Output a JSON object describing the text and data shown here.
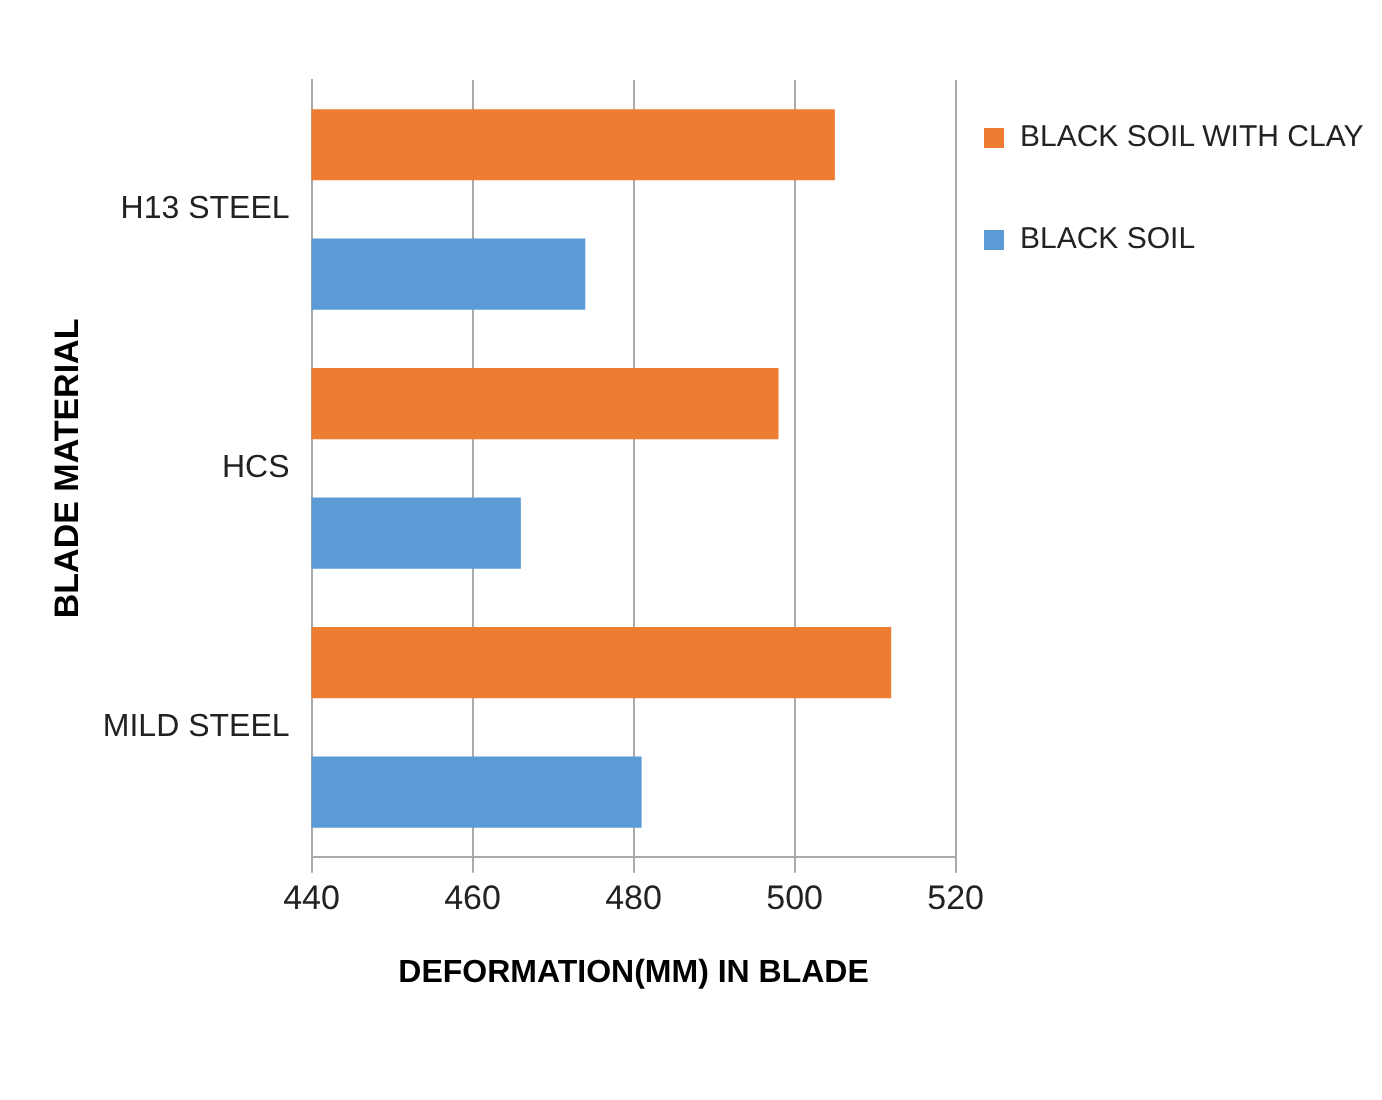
{
  "chart_data": {
    "type": "bar",
    "orientation": "horizontal",
    "xlabel": "DEFORMATION(MM) IN BLADE",
    "ylabel": "BLADE MATERIAL",
    "categories": [
      "H13 STEEL",
      "HCS",
      "MILD STEEL"
    ],
    "series": [
      {
        "name": "BLACK SOIL WITH CLAY",
        "color": "#ed7d31",
        "values": [
          505,
          498,
          512
        ]
      },
      {
        "name": "BLACK SOIL",
        "color": "#5b9bd5",
        "values": [
          474,
          466,
          481
        ]
      }
    ],
    "xlim": [
      440,
      520
    ],
    "xticks": [
      440,
      460,
      480,
      500,
      520
    ],
    "grid": "x",
    "legend": "right"
  }
}
